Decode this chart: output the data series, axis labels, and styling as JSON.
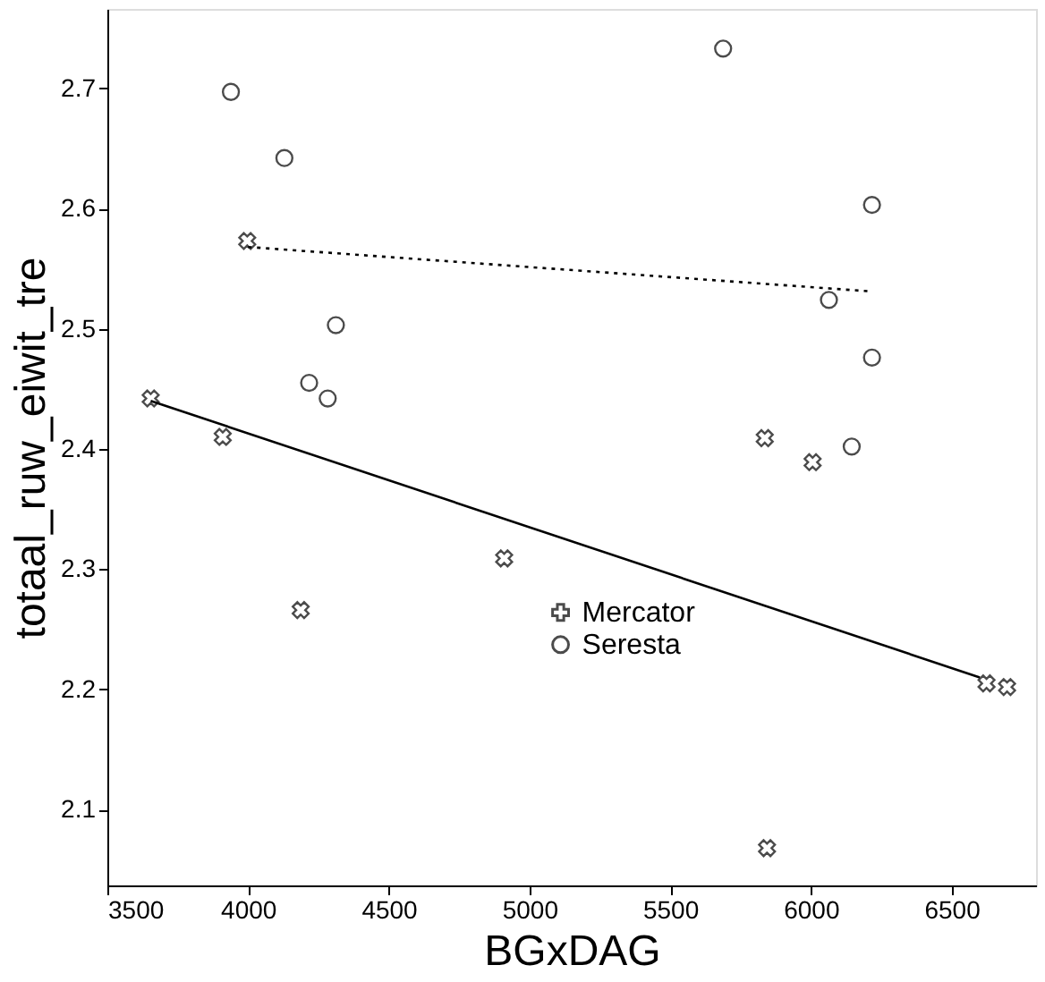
{
  "chart_data": {
    "type": "scatter",
    "xlabel": "BGxDAG",
    "ylabel": "totaal_ruw_eiwit_tre",
    "xlim": [
      3500,
      6800
    ],
    "xticks": [
      3500,
      4000,
      4500,
      5000,
      5500,
      6000,
      6500
    ],
    "ylim": [
      2.037,
      2.766
    ],
    "yticks": [
      2.1,
      2.2,
      2.3,
      2.4,
      2.5,
      2.6,
      2.7
    ],
    "grid": false,
    "legend": "right",
    "series": [
      {
        "name": "Mercator",
        "color": "#000000",
        "marker": "cross",
        "x": [
          3654,
          3910,
          3997,
          4187,
          4910,
          5836,
          5844,
          6006,
          6624,
          6697
        ],
        "values": [
          2.442,
          2.41,
          2.573,
          2.266,
          2.309,
          2.409,
          2.068,
          2.389,
          2.205,
          2.202
        ]
      },
      {
        "name": "Seresta",
        "color": "#000000",
        "marker": "circle",
        "x": [
          3939,
          4129,
          4217,
          4283,
          4312,
          5688,
          6064,
          6145,
          6217,
          6217
        ],
        "values": [
          2.697,
          2.642,
          2.455,
          2.442,
          2.503,
          2.733,
          2.524,
          2.402,
          2.603,
          2.476
        ]
      },
      {
        "type": "line",
        "color": "#000000",
        "line_style": "solid",
        "marker": "none",
        "x": [
          3654,
          6600
        ],
        "values": [
          2.44,
          2.21
        ]
      },
      {
        "type": "line",
        "color": "#000000",
        "line_style": "dotted",
        "marker": "none",
        "x": [
          4000,
          6217
        ],
        "values": [
          2.568,
          2.531
        ]
      }
    ]
  }
}
